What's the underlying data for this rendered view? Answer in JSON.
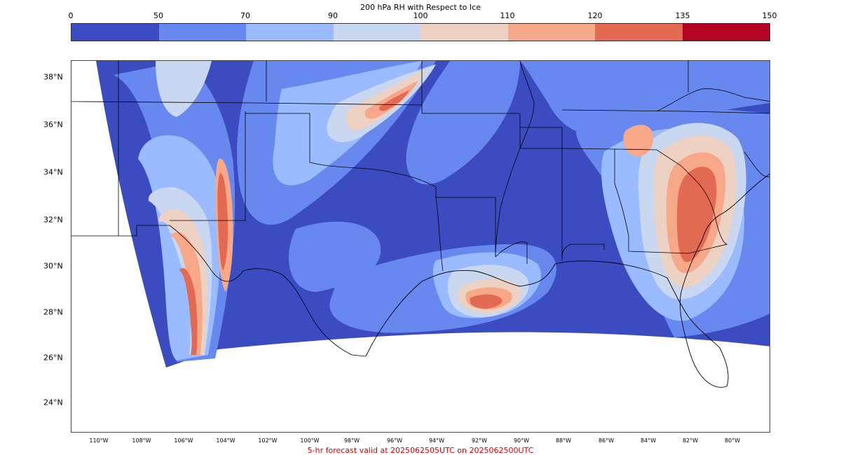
{
  "colorbar": {
    "title": "200 hPa RH with Respect to Ice",
    "ticks": [
      "0",
      "50",
      "70",
      "90",
      "100",
      "110",
      "120",
      "135",
      "150"
    ],
    "colors": [
      "#3b4cc0",
      "#6788ee",
      "#9abbff",
      "#c9d7f0",
      "#edd1c2",
      "#f7a889",
      "#e26952",
      "#b40426"
    ]
  },
  "map": {
    "lat_labels": [
      "38°N",
      "36°N",
      "34°N",
      "32°N",
      "30°N",
      "28°N",
      "26°N",
      "24°N"
    ],
    "lon_labels": [
      "110°W",
      "108°W",
      "106°W",
      "104°W",
      "102°W",
      "100°W",
      "98°W",
      "96°W",
      "94°W",
      "92°W",
      "90°W",
      "88°W",
      "86°W",
      "84°W",
      "82°W",
      "80°W"
    ],
    "background_color": "#3b4cc0",
    "border_color": "#000000"
  },
  "footer": {
    "text": "5-hr forecast valid at 2025062505UTC on 2025062500UTC",
    "color": "#e00000"
  }
}
